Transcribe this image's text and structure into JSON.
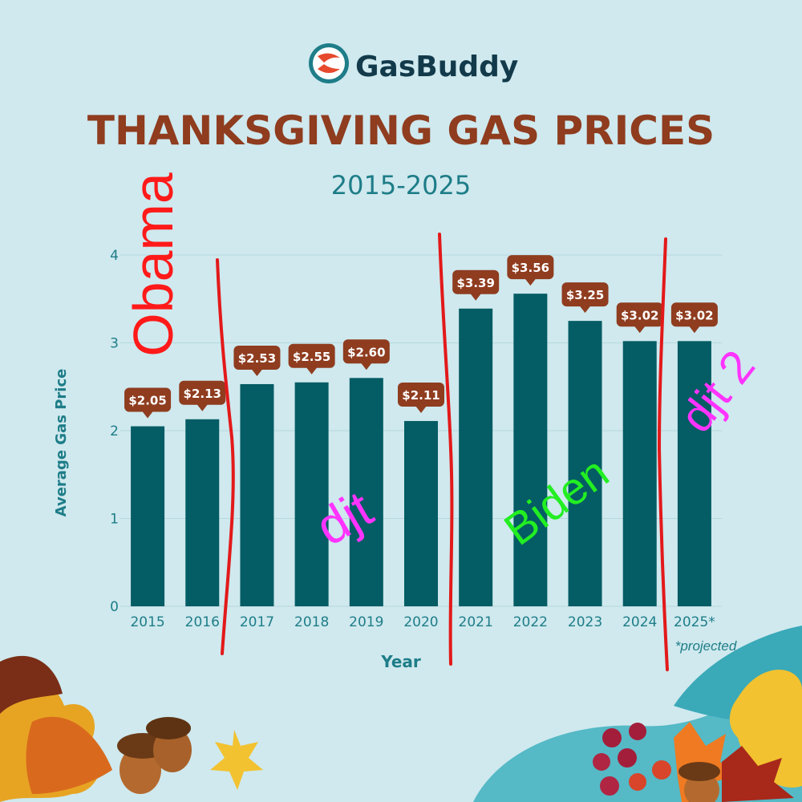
{
  "logo": {
    "text": "GasBuddy",
    "mark": "gasbuddy-swoosh-icon"
  },
  "chart_data": {
    "type": "bar",
    "title": "THANKSGIVING GAS PRICES",
    "subtitle": "2015-2025",
    "xlabel": "Year",
    "ylabel": "Average Gas Price",
    "ylim": [
      0,
      4
    ],
    "yticks": [
      "0",
      "1",
      "2",
      "3",
      "4"
    ],
    "grid": true,
    "categories": [
      "2015",
      "2016",
      "2017",
      "2018",
      "2019",
      "2020",
      "2021",
      "2022",
      "2023",
      "2024",
      "2025*"
    ],
    "values": [
      2.05,
      2.13,
      2.53,
      2.55,
      2.6,
      2.11,
      3.39,
      3.56,
      3.25,
      3.02,
      3.02
    ],
    "data_labels": [
      "$2.05",
      "$2.13",
      "$2.53",
      "$2.55",
      "$2.60",
      "$2.11",
      "$3.39",
      "$3.56",
      "$3.25",
      "$3.02",
      "$3.02"
    ],
    "footnote": "*projected",
    "annotations": [
      {
        "text": "Obama",
        "color": "#ff1a1a"
      },
      {
        "text": "djt",
        "color": "#ff33ff"
      },
      {
        "text": "Biden",
        "color": "#22ee22"
      },
      {
        "text": "djt 2",
        "color": "#ff33ff"
      }
    ]
  },
  "colors": {
    "background": "#cfe9ee",
    "bar": "#045c64",
    "title": "#8f3c1f",
    "subtitle": "#1e7d88",
    "axis_text": "#1e7d88",
    "label_bg": "#8f3c1f",
    "divider": "#e3191a"
  }
}
